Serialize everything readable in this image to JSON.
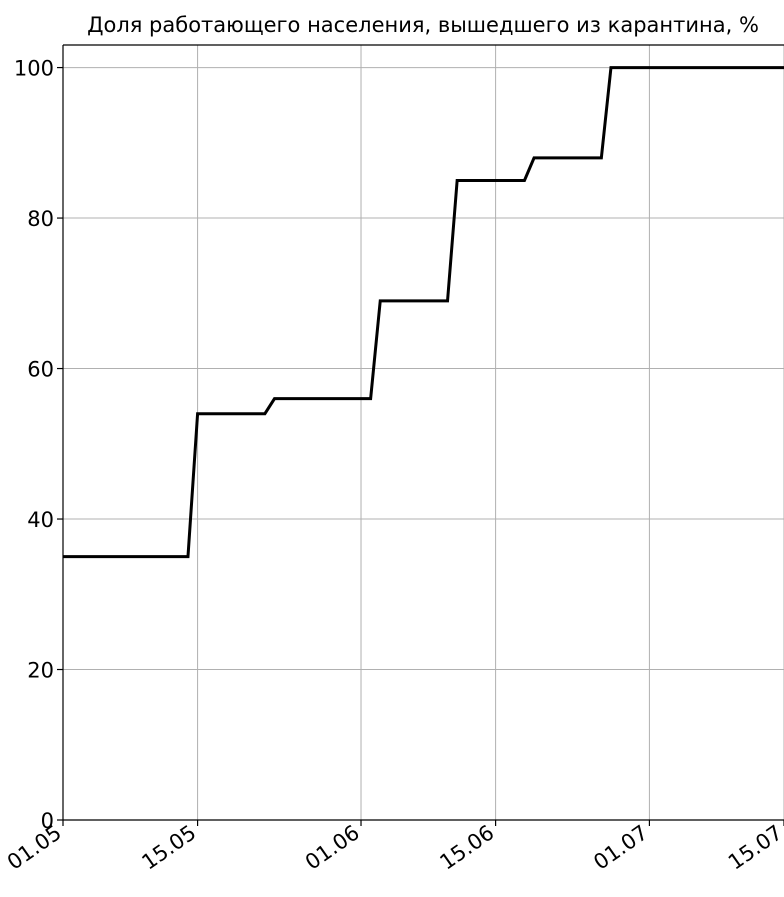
{
  "chart_data": {
    "type": "line",
    "title": "Доля работающего населения, вышедшего из карантина, %",
    "xlabel": "",
    "ylabel": "",
    "x_ticks": [
      {
        "label": "01.05",
        "value": "2020-05-01"
      },
      {
        "label": "15.05",
        "value": "2020-05-15"
      },
      {
        "label": "01.06",
        "value": "2020-06-01"
      },
      {
        "label": "15.06",
        "value": "2020-06-15"
      },
      {
        "label": "01.07",
        "value": "2020-07-01"
      },
      {
        "label": "15.07",
        "value": "2020-07-15"
      }
    ],
    "y_ticks": [
      0,
      20,
      40,
      60,
      80,
      100
    ],
    "xlim": [
      "2020-05-01",
      "2020-07-15"
    ],
    "ylim": [
      0,
      103
    ],
    "grid": true,
    "series": [
      {
        "color": "#000000",
        "points": [
          {
            "x": "2020-05-01",
            "y": 35
          },
          {
            "x": "2020-05-14",
            "y": 35
          },
          {
            "x": "2020-05-15",
            "y": 54
          },
          {
            "x": "2020-05-22",
            "y": 54
          },
          {
            "x": "2020-05-23",
            "y": 56
          },
          {
            "x": "2020-06-02",
            "y": 56
          },
          {
            "x": "2020-06-03",
            "y": 69
          },
          {
            "x": "2020-06-10",
            "y": 69
          },
          {
            "x": "2020-06-11",
            "y": 85
          },
          {
            "x": "2020-06-18",
            "y": 85
          },
          {
            "x": "2020-06-19",
            "y": 88
          },
          {
            "x": "2020-06-26",
            "y": 88
          },
          {
            "x": "2020-06-27",
            "y": 100
          },
          {
            "x": "2020-07-15",
            "y": 100
          }
        ]
      }
    ]
  }
}
